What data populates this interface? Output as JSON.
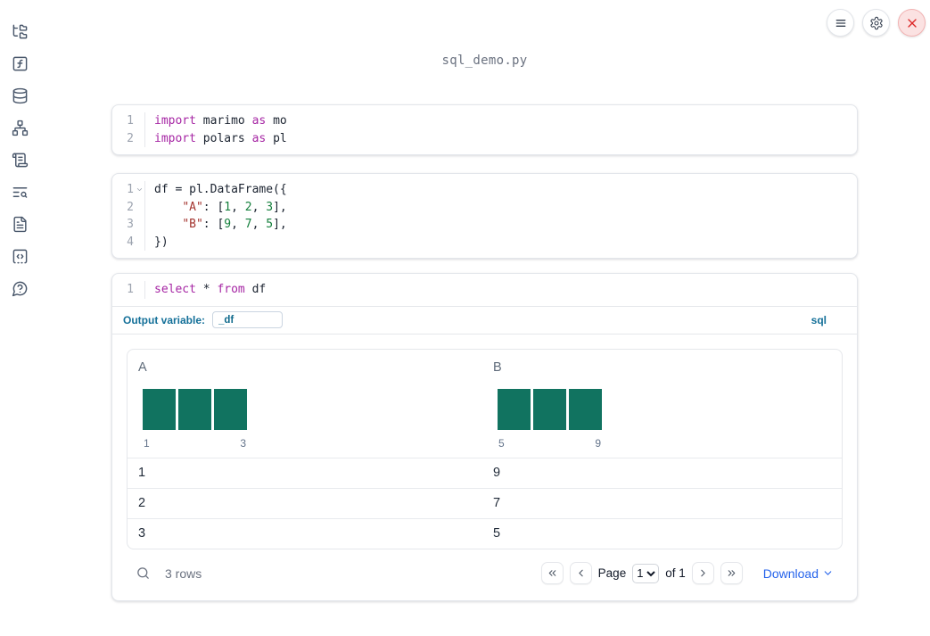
{
  "app": {
    "title": "sql_demo.py"
  },
  "topbar": {
    "buttons": [
      {
        "name": "notebook-menu",
        "icon": "menu",
        "danger": false
      },
      {
        "name": "settings",
        "icon": "gear",
        "danger": false
      },
      {
        "name": "shutdown",
        "icon": "close",
        "danger": true
      }
    ]
  },
  "sidebar": {
    "items": [
      {
        "name": "file-explorer",
        "icon": "folder-tree"
      },
      {
        "name": "variables",
        "icon": "function-square"
      },
      {
        "name": "data-sources",
        "icon": "database"
      },
      {
        "name": "dependency-graph",
        "icon": "network"
      },
      {
        "name": "outline",
        "icon": "scroll-text"
      },
      {
        "name": "logs",
        "icon": "text-search"
      },
      {
        "name": "documentation",
        "icon": "file-text"
      },
      {
        "name": "snippets",
        "icon": "code-square"
      },
      {
        "name": "help",
        "icon": "help-bubble"
      }
    ]
  },
  "cells": [
    {
      "name": "imports-cell",
      "lines": [
        {
          "num": "1",
          "fold": false,
          "tokens": [
            [
              "kw",
              "import"
            ],
            [
              "pl",
              " marimo "
            ],
            [
              "kw",
              "as"
            ],
            [
              "pl",
              " mo"
            ]
          ]
        },
        {
          "num": "2",
          "fold": false,
          "tokens": [
            [
              "kw",
              "import"
            ],
            [
              "pl",
              " polars "
            ],
            [
              "kw",
              "as"
            ],
            [
              "pl",
              " pl"
            ]
          ]
        }
      ]
    },
    {
      "name": "dataframe-cell",
      "lines": [
        {
          "num": "1",
          "fold": true,
          "tokens": [
            [
              "pl",
              "df = pl.DataFrame({"
            ]
          ]
        },
        {
          "num": "2",
          "fold": false,
          "tokens": [
            [
              "pl",
              "    "
            ],
            [
              "str",
              "\"A\""
            ],
            [
              "pl",
              ": ["
            ],
            [
              "num",
              "1"
            ],
            [
              "pl",
              ", "
            ],
            [
              "num",
              "2"
            ],
            [
              "pl",
              ", "
            ],
            [
              "num",
              "3"
            ],
            [
              "pl",
              "],"
            ]
          ]
        },
        {
          "num": "3",
          "fold": false,
          "tokens": [
            [
              "pl",
              "    "
            ],
            [
              "str",
              "\"B\""
            ],
            [
              "pl",
              ": ["
            ],
            [
              "num",
              "9"
            ],
            [
              "pl",
              ", "
            ],
            [
              "num",
              "7"
            ],
            [
              "pl",
              ", "
            ],
            [
              "num",
              "5"
            ],
            [
              "pl",
              "],"
            ]
          ]
        },
        {
          "num": "4",
          "fold": false,
          "tokens": [
            [
              "pl",
              "})"
            ]
          ]
        }
      ]
    }
  ],
  "sql_cell": {
    "lines": [
      {
        "num": "1",
        "fold": false,
        "tokens": [
          [
            "kw",
            "select"
          ],
          [
            "pl",
            " * "
          ],
          [
            "kw",
            "from"
          ],
          [
            "pl",
            " df"
          ]
        ]
      }
    ],
    "output_variable_label": "Output variable:",
    "output_variable_value": "_df",
    "language_badge": "sql"
  },
  "table": {
    "columns": [
      {
        "header": "A",
        "histogram": {
          "bar_values": [
            1,
            1,
            1
          ],
          "axis_labels": [
            "1",
            "3"
          ]
        }
      },
      {
        "header": "B",
        "histogram": {
          "bar_values": [
            1,
            1,
            1
          ],
          "axis_labels": [
            "5",
            "9"
          ]
        }
      }
    ],
    "rows": [
      [
        "1",
        "9"
      ],
      [
        "2",
        "7"
      ],
      [
        "3",
        "5"
      ]
    ],
    "footer": {
      "row_count": "3 rows",
      "page_label": "Page",
      "page_options": [
        "1"
      ],
      "page_value": "1",
      "of_label": "of 1",
      "download_label": "Download"
    }
  },
  "colors": {
    "accent_blue": "#2563eb",
    "sql_teal": "#147099",
    "bar_green": "#117360",
    "keyword_purple": "#a626a4",
    "string_red": "#a3342f",
    "number_green": "#15803d",
    "danger_red": "#dc2626"
  }
}
